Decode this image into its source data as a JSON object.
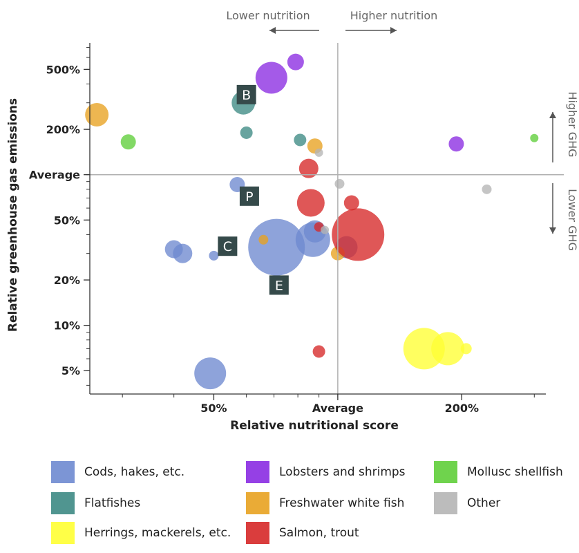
{
  "chart_data": {
    "type": "scatter",
    "subtype": "bubble",
    "xlabel": "Relative nutritional score",
    "ylabel": "Relative greenhouse gas emissions",
    "x_scale": "log",
    "y_scale": "log",
    "xlim": [
      0.25,
      3.2
    ],
    "ylim": [
      0.035,
      7.5
    ],
    "x_ticks": [
      {
        "value": 0.5,
        "label": "50%"
      },
      {
        "value": 1,
        "label": "Average"
      },
      {
        "value": 2,
        "label": "200%"
      }
    ],
    "y_ticks": [
      {
        "value": 0.05,
        "label": "5%"
      },
      {
        "value": 0.1,
        "label": "10%"
      },
      {
        "value": 0.2,
        "label": "20%"
      },
      {
        "value": 0.5,
        "label": "50%"
      },
      {
        "value": 1,
        "label": "Average"
      },
      {
        "value": 2,
        "label": "200%"
      },
      {
        "value": 5,
        "label": "500%"
      }
    ],
    "reference_lines": {
      "x": 1,
      "y": 1
    },
    "annotations": {
      "lower_nutrition": "Lower nutrition",
      "higher_nutrition": "Higher nutrition",
      "higher_ghg": "Higher GHG",
      "lower_ghg": "Lower GHG"
    },
    "point_labels": [
      {
        "text": "B",
        "x": 0.6,
        "y": 3.4
      },
      {
        "text": "P",
        "x": 0.61,
        "y": 0.72
      },
      {
        "text": "C",
        "x": 0.54,
        "y": 0.335
      },
      {
        "text": "E",
        "x": 0.72,
        "y": 0.185
      }
    ],
    "legend": [
      {
        "key": "cods",
        "label": "Cods, hakes, etc.",
        "color": "#6e89d0"
      },
      {
        "key": "flatfish",
        "label": "Flatfishes",
        "color": "#3d8a84"
      },
      {
        "key": "herring",
        "label": "Herrings, mackerels, etc.",
        "color": "#ffff33"
      },
      {
        "key": "lobster",
        "label": "Lobsters and shrimps",
        "color": "#8a2be2"
      },
      {
        "key": "freshwater",
        "label": "Freshwater white fish",
        "color": "#e8a220"
      },
      {
        "key": "salmon",
        "label": "Salmon, trout",
        "color": "#d62828"
      },
      {
        "key": "mollusc",
        "label": "Mollusc shellfish",
        "color": "#5fce3a"
      },
      {
        "key": "other",
        "label": "Other",
        "color": "#b5b5b5"
      }
    ],
    "series": [
      {
        "name": "Cods, hakes, etc.",
        "points": [
          {
            "x": 0.71,
            "y": 0.33,
            "size": 41
          },
          {
            "x": 0.87,
            "y": 0.37,
            "size": 25
          },
          {
            "x": 0.88,
            "y": 0.42,
            "size": 16
          },
          {
            "x": 0.4,
            "y": 0.32,
            "size": 13
          },
          {
            "x": 0.42,
            "y": 0.3,
            "size": 14
          },
          {
            "x": 0.57,
            "y": 0.86,
            "size": 11
          },
          {
            "x": 0.49,
            "y": 0.048,
            "size": 23
          },
          {
            "x": 0.5,
            "y": 0.29,
            "size": 7
          },
          {
            "x": 1.05,
            "y": 0.33,
            "size": 16
          }
        ]
      },
      {
        "name": "Flatfishes",
        "points": [
          {
            "x": 0.59,
            "y": 3.0,
            "size": 17
          },
          {
            "x": 0.6,
            "y": 1.9,
            "size": 9
          },
          {
            "x": 0.81,
            "y": 1.7,
            "size": 9
          },
          {
            "x": 0.54,
            "y": 0.33,
            "size": 8
          }
        ]
      },
      {
        "name": "Herrings, mackerels, etc.",
        "points": [
          {
            "x": 1.62,
            "y": 0.07,
            "size": 30
          },
          {
            "x": 1.85,
            "y": 0.07,
            "size": 24
          },
          {
            "x": 2.05,
            "y": 0.07,
            "size": 8
          }
        ]
      },
      {
        "name": "Lobsters and shrimps",
        "points": [
          {
            "x": 0.69,
            "y": 4.4,
            "size": 23
          },
          {
            "x": 0.79,
            "y": 5.6,
            "size": 12
          },
          {
            "x": 1.94,
            "y": 1.6,
            "size": 11
          }
        ]
      },
      {
        "name": "Freshwater white fish",
        "points": [
          {
            "x": 0.26,
            "y": 2.5,
            "size": 17
          },
          {
            "x": 0.88,
            "y": 1.55,
            "size": 11
          },
          {
            "x": 0.66,
            "y": 0.37,
            "size": 7
          },
          {
            "x": 1.0,
            "y": 0.3,
            "size": 10
          }
        ]
      },
      {
        "name": "Salmon, trout",
        "points": [
          {
            "x": 1.12,
            "y": 0.4,
            "size": 38
          },
          {
            "x": 0.85,
            "y": 1.1,
            "size": 14
          },
          {
            "x": 0.86,
            "y": 0.65,
            "size": 20
          },
          {
            "x": 1.08,
            "y": 0.65,
            "size": 11
          },
          {
            "x": 0.9,
            "y": 0.45,
            "size": 7
          },
          {
            "x": 0.9,
            "y": 0.067,
            "size": 9
          }
        ]
      },
      {
        "name": "Mollusc shellfish",
        "points": [
          {
            "x": 0.31,
            "y": 1.65,
            "size": 11
          },
          {
            "x": 3.0,
            "y": 1.75,
            "size": 6
          }
        ]
      },
      {
        "name": "Other",
        "points": [
          {
            "x": 1.01,
            "y": 0.87,
            "size": 7
          },
          {
            "x": 2.3,
            "y": 0.8,
            "size": 7
          },
          {
            "x": 0.9,
            "y": 1.4,
            "size": 6
          },
          {
            "x": 0.93,
            "y": 0.43,
            "size": 6
          }
        ]
      }
    ]
  }
}
